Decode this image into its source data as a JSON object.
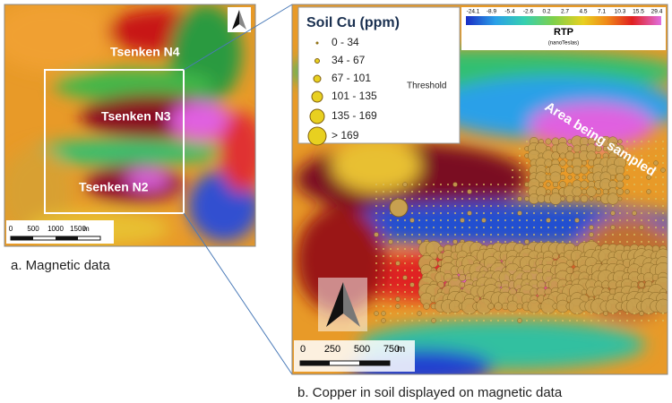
{
  "panel_a": {
    "labels": [
      "Tsenken N4",
      "Tsenken N3",
      "Tsenken N2"
    ],
    "scale": {
      "ticks": [
        "0",
        "500",
        "1000",
        "1500"
      ],
      "unit": "m"
    },
    "caption": "a. Magnetic data"
  },
  "panel_b": {
    "legend": {
      "title": "Soil Cu (ppm)",
      "entries": [
        "0 - 34",
        "34 - 67",
        "67 - 101",
        "101 - 135",
        "135 - 169",
        "> 169"
      ],
      "note": "Threshold"
    },
    "colorbar": {
      "ticks": [
        -24.1,
        -8.9,
        -5.4,
        -2.6,
        0.2,
        2.7,
        4.5,
        7.1,
        10.3,
        15.5,
        29.4
      ],
      "title": "RTP",
      "unit": "(nanoTeslas)"
    },
    "annotation": "Area being sampled",
    "scale": {
      "ticks": [
        "0",
        "250",
        "500",
        "750"
      ],
      "unit": "m"
    },
    "caption": "b. Copper in soil displayed on magnetic data"
  }
}
